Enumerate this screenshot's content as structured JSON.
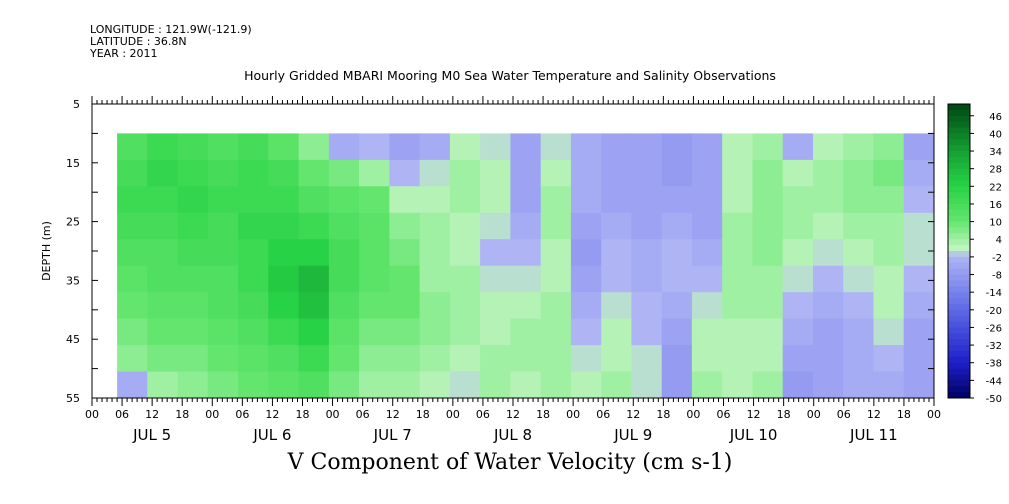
{
  "header": {
    "longitude": "LONGITUDE : 121.9W(-121.9)",
    "latitude": "LATITUDE : 36.8N",
    "year": "YEAR : 2011"
  },
  "chart_data": {
    "type": "heatmap",
    "title": "Hourly Gridded MBARI Mooring M0 Sea Water Temperature and Salinity Observations",
    "subtitle": "V Component of Water Velocity (cm s-1)",
    "xlabel": "",
    "ylabel": "DEPTH (m)",
    "x_tick_labels": [
      "00",
      "06",
      "12",
      "18",
      "00",
      "06",
      "12",
      "18",
      "00",
      "06",
      "12",
      "18",
      "00",
      "06",
      "12",
      "18",
      "00",
      "06",
      "12",
      "18",
      "00",
      "06",
      "12",
      "18",
      "00",
      "06",
      "12",
      "18",
      "00"
    ],
    "day_labels": [
      "JUL 5",
      "JUL 6",
      "JUL 7",
      "JUL 8",
      "JUL 9",
      "JUL 10",
      "JUL 11"
    ],
    "y_ticks": [
      5,
      15,
      25,
      35,
      45,
      55
    ],
    "ylim": [
      55,
      5
    ],
    "data_depth_range": [
      10,
      55
    ],
    "data_time_start": "JUL 5 05:00",
    "colorbar": {
      "labels": [
        46,
        40,
        34,
        28,
        22,
        16,
        10,
        4,
        -2,
        -8,
        -14,
        -20,
        -26,
        -32,
        -38,
        -44,
        -50
      ],
      "min": -50,
      "max": 50
    },
    "grid": false,
    "series": [
      {
        "time": "JUL 5 06",
        "values_by_depth": [
          14,
          16,
          18,
          16,
          14,
          12,
          10,
          8,
          6,
          -4
        ]
      },
      {
        "time": "JUL 5 12",
        "values_by_depth": [
          18,
          20,
          18,
          16,
          14,
          14,
          12,
          10,
          8,
          4
        ]
      },
      {
        "time": "JUL 5 18",
        "values_by_depth": [
          16,
          18,
          20,
          18,
          16,
          14,
          12,
          10,
          8,
          6
        ]
      },
      {
        "time": "JUL 6 00",
        "values_by_depth": [
          14,
          16,
          18,
          16,
          16,
          14,
          14,
          12,
          10,
          8
        ]
      },
      {
        "time": "JUL 6 06",
        "values_by_depth": [
          16,
          18,
          18,
          20,
          18,
          18,
          16,
          14,
          12,
          10
        ]
      },
      {
        "time": "JUL 6 12",
        "values_by_depth": [
          12,
          16,
          18,
          20,
          22,
          24,
          22,
          18,
          14,
          12
        ]
      },
      {
        "time": "JUL 6 18",
        "values_by_depth": [
          6,
          10,
          14,
          18,
          22,
          28,
          26,
          22,
          18,
          14
        ]
      },
      {
        "time": "JUL 7 00",
        "values_by_depth": [
          -4,
          8,
          12,
          14,
          16,
          16,
          14,
          12,
          10,
          8
        ]
      },
      {
        "time": "JUL 7 06",
        "values_by_depth": [
          -2,
          4,
          10,
          12,
          12,
          12,
          10,
          8,
          6,
          4
        ]
      },
      {
        "time": "JUL 7 12",
        "values_by_depth": [
          -6,
          -2,
          2,
          6,
          8,
          10,
          10,
          8,
          6,
          4
        ]
      },
      {
        "time": "JUL 7 18",
        "values_by_depth": [
          -4,
          0,
          2,
          4,
          4,
          4,
          6,
          6,
          4,
          2
        ]
      },
      {
        "time": "JUL 8 00",
        "values_by_depth": [
          2,
          4,
          4,
          2,
          2,
          4,
          4,
          4,
          2,
          0
        ]
      },
      {
        "time": "JUL 8 06",
        "values_by_depth": [
          0,
          2,
          2,
          0,
          -2,
          0,
          2,
          2,
          4,
          4
        ]
      },
      {
        "time": "JUL 8 12",
        "values_by_depth": [
          -6,
          -6,
          -6,
          -4,
          -2,
          0,
          2,
          4,
          4,
          2
        ]
      },
      {
        "time": "JUL 8 18",
        "values_by_depth": [
          0,
          2,
          4,
          4,
          2,
          2,
          4,
          4,
          4,
          4
        ]
      },
      {
        "time": "JUL 9 00",
        "values_by_depth": [
          -4,
          -4,
          -4,
          -6,
          -8,
          -6,
          -4,
          -2,
          0,
          2
        ]
      },
      {
        "time": "JUL 9 06",
        "values_by_depth": [
          -6,
          -6,
          -6,
          -4,
          -2,
          -2,
          0,
          2,
          2,
          4
        ]
      },
      {
        "time": "JUL 9 12",
        "values_by_depth": [
          -6,
          -6,
          -6,
          -6,
          -4,
          -4,
          -2,
          -2,
          0,
          0
        ]
      },
      {
        "time": "JUL 9 18",
        "values_by_depth": [
          -8,
          -8,
          -6,
          -4,
          -2,
          -2,
          -4,
          -6,
          -8,
          -8
        ]
      },
      {
        "time": "JUL 10 00",
        "values_by_depth": [
          -6,
          -6,
          -6,
          -6,
          -4,
          -2,
          0,
          2,
          2,
          4
        ]
      },
      {
        "time": "JUL 10 06",
        "values_by_depth": [
          2,
          2,
          2,
          4,
          4,
          4,
          4,
          2,
          2,
          2
        ]
      },
      {
        "time": "JUL 10 12",
        "values_by_depth": [
          4,
          6,
          6,
          6,
          6,
          4,
          4,
          2,
          2,
          4
        ]
      },
      {
        "time": "JUL 10 18",
        "values_by_depth": [
          -4,
          2,
          4,
          4,
          2,
          0,
          -2,
          -4,
          -6,
          -8
        ]
      },
      {
        "time": "JUL 11 00",
        "values_by_depth": [
          2,
          4,
          4,
          2,
          0,
          -2,
          -4,
          -6,
          -6,
          -6
        ]
      },
      {
        "time": "JUL 11 06",
        "values_by_depth": [
          4,
          6,
          6,
          4,
          2,
          0,
          -2,
          -4,
          -4,
          -4
        ]
      },
      {
        "time": "JUL 11 12",
        "values_by_depth": [
          6,
          8,
          6,
          4,
          4,
          2,
          2,
          0,
          -2,
          -4
        ]
      },
      {
        "time": "JUL 11 18",
        "values_by_depth": [
          -6,
          -4,
          -2,
          0,
          0,
          -2,
          -4,
          -6,
          -6,
          -6
        ]
      }
    ]
  }
}
